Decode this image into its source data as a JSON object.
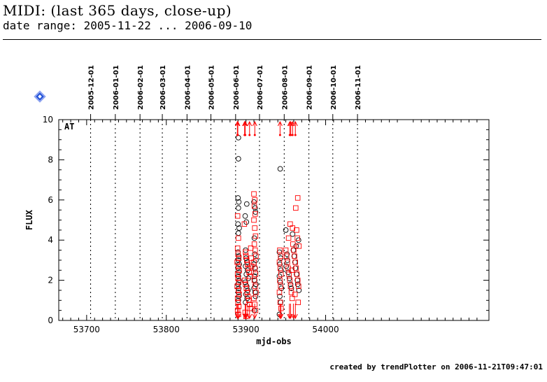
{
  "header": {
    "title": "MIDI: (last 365 days, close-up)",
    "subtitle": "date range: 2005-11-22 ... 2006-09-10"
  },
  "footer": {
    "text": "created by trendPlotter on 2006-11-21T09:47:01"
  },
  "nav": {
    "icon": "diamond-nav-icon",
    "color": "#1f4fd6"
  },
  "chart_data": {
    "type": "scatter",
    "panel_label": "AT",
    "xlabel": "mjd-obs",
    "ylabel": "FLUX",
    "xlim": [
      53665,
      54205
    ],
    "ylim": [
      0,
      10
    ],
    "x_ticks": [
      53700,
      53800,
      53900,
      54000
    ],
    "y_ticks": [
      0,
      2,
      4,
      6,
      8,
      10
    ],
    "date_markers": [
      {
        "mjd": 53705,
        "label": "2005-12-01"
      },
      {
        "mjd": 53736,
        "label": "2006-01-01"
      },
      {
        "mjd": 53767,
        "label": "2006-02-01"
      },
      {
        "mjd": 53795,
        "label": "2006-03-01"
      },
      {
        "mjd": 53826,
        "label": "2006-04-01"
      },
      {
        "mjd": 53856,
        "label": "2006-05-01"
      },
      {
        "mjd": 53887,
        "label": "2006-06-01"
      },
      {
        "mjd": 53917,
        "label": "2006-07-01"
      },
      {
        "mjd": 53948,
        "label": "2006-08-01"
      },
      {
        "mjd": 53979,
        "label": "2006-09-01"
      },
      {
        "mjd": 54009,
        "label": "2006-10-01"
      },
      {
        "mjd": 54040,
        "label": "2006-11-01"
      }
    ],
    "colors": {
      "series_black": "#000000",
      "series_red": "#ff0000"
    },
    "series": [
      {
        "marker": "circle",
        "color": "#000000",
        "points": [
          [
            53890.5,
            9.1
          ],
          [
            53890.5,
            8.05
          ],
          [
            53890.0,
            6.1
          ],
          [
            53891.0,
            5.9
          ],
          [
            53890.5,
            5.6
          ],
          [
            53890.0,
            4.8
          ],
          [
            53891.5,
            4.6
          ],
          [
            53890.5,
            4.35
          ],
          [
            53890.0,
            3.4
          ],
          [
            53891.0,
            3.2
          ],
          [
            53890.5,
            3.0
          ],
          [
            53891.5,
            2.8
          ],
          [
            53890.0,
            2.6
          ],
          [
            53891.0,
            2.4
          ],
          [
            53890.5,
            2.2
          ],
          [
            53891.5,
            2.0
          ],
          [
            53890.0,
            1.8
          ],
          [
            53891.0,
            1.6
          ],
          [
            53890.5,
            1.4
          ],
          [
            53891.0,
            1.2
          ],
          [
            53890.5,
            1.0
          ],
          [
            53901.0,
            5.8
          ],
          [
            53899.0,
            5.2
          ],
          [
            53900.5,
            4.9
          ],
          [
            53899.5,
            3.5
          ],
          [
            53900.0,
            3.1
          ],
          [
            53901.5,
            2.9
          ],
          [
            53899.5,
            2.7
          ],
          [
            53902.0,
            2.5
          ],
          [
            53900.5,
            2.3
          ],
          [
            53903.0,
            2.1
          ],
          [
            53899.0,
            1.9
          ],
          [
            53901.0,
            1.7
          ],
          [
            53902.5,
            1.5
          ],
          [
            53900.0,
            1.3
          ],
          [
            53901.5,
            1.1
          ],
          [
            53899.5,
            0.9
          ],
          [
            53910.0,
            5.9
          ],
          [
            53911.5,
            5.6
          ],
          [
            53912.0,
            5.4
          ],
          [
            53910.5,
            4.1
          ],
          [
            53911.0,
            3.3
          ],
          [
            53912.5,
            3.0
          ],
          [
            53910.0,
            2.8
          ],
          [
            53911.5,
            2.6
          ],
          [
            53912.0,
            2.4
          ],
          [
            53910.5,
            2.2
          ],
          [
            53911.0,
            2.0
          ],
          [
            53912.5,
            1.8
          ],
          [
            53910.0,
            1.6
          ],
          [
            53911.5,
            1.4
          ],
          [
            53912.0,
            1.2
          ],
          [
            53910.5,
            0.5
          ],
          [
            53943.0,
            7.55
          ],
          [
            53942.0,
            3.4
          ],
          [
            53943.5,
            3.1
          ],
          [
            53942.5,
            2.8
          ],
          [
            53944.0,
            2.5
          ],
          [
            53942.0,
            2.2
          ],
          [
            53943.0,
            1.9
          ],
          [
            53944.5,
            1.6
          ],
          [
            53942.5,
            1.2
          ],
          [
            53943.5,
            0.9
          ],
          [
            53942.0,
            0.3
          ],
          [
            53950.0,
            4.5
          ],
          [
            53951.5,
            3.3
          ],
          [
            53952.0,
            3.0
          ],
          [
            53950.5,
            2.7
          ],
          [
            53953.0,
            2.4
          ],
          [
            53954.5,
            2.1
          ],
          [
            53956.0,
            1.8
          ],
          [
            53957.0,
            1.6
          ],
          [
            53958.5,
            4.3
          ],
          [
            53959.5,
            3.5
          ],
          [
            53960.5,
            3.2
          ],
          [
            53961.5,
            2.9
          ],
          [
            53962.0,
            2.6
          ],
          [
            53963.5,
            2.3
          ],
          [
            53964.5,
            2.0
          ],
          [
            53965.0,
            1.8
          ],
          [
            53966.5,
            1.5
          ],
          [
            53966.0,
            4.0
          ],
          [
            53963.0,
            3.7
          ]
        ]
      },
      {
        "marker": "square",
        "color": "#ff0000",
        "points": [
          [
            53889.5,
            5.2
          ],
          [
            53890.5,
            4.1
          ],
          [
            53889.5,
            3.6
          ],
          [
            53890.0,
            3.3
          ],
          [
            53891.0,
            3.1
          ],
          [
            53889.0,
            2.9
          ],
          [
            53890.5,
            2.7
          ],
          [
            53891.5,
            2.5
          ],
          [
            53889.5,
            2.3
          ],
          [
            53890.0,
            2.1
          ],
          [
            53891.0,
            1.9
          ],
          [
            53889.0,
            1.7
          ],
          [
            53890.5,
            1.5
          ],
          [
            53891.5,
            1.3
          ],
          [
            53889.5,
            1.1
          ],
          [
            53890.0,
            0.9
          ],
          [
            53891.0,
            0.7
          ],
          [
            53889.5,
            0.5
          ],
          [
            53890.5,
            0.3
          ],
          [
            53898.0,
            4.8
          ],
          [
            53899.5,
            3.4
          ],
          [
            53900.0,
            3.2
          ],
          [
            53901.0,
            3.0
          ],
          [
            53902.0,
            2.8
          ],
          [
            53903.0,
            2.6
          ],
          [
            53904.0,
            2.4
          ],
          [
            53905.0,
            2.2
          ],
          [
            53898.5,
            2.0
          ],
          [
            53899.5,
            1.8
          ],
          [
            53900.5,
            1.6
          ],
          [
            53901.5,
            1.4
          ],
          [
            53902.5,
            1.2
          ],
          [
            53903.5,
            1.0
          ],
          [
            53904.5,
            0.8
          ],
          [
            53905.5,
            0.6
          ],
          [
            53899.0,
            0.4
          ],
          [
            53900.0,
            0.2
          ],
          [
            53906.0,
            3.6
          ],
          [
            53906.5,
            3.1
          ],
          [
            53907.0,
            2.7
          ],
          [
            53910.0,
            6.3
          ],
          [
            53911.0,
            6.0
          ],
          [
            53910.5,
            5.7
          ],
          [
            53911.5,
            5.3
          ],
          [
            53910.0,
            5.0
          ],
          [
            53911.0,
            4.6
          ],
          [
            53912.0,
            4.2
          ],
          [
            53910.5,
            3.8
          ],
          [
            53911.5,
            3.5
          ],
          [
            53912.5,
            3.2
          ],
          [
            53910.0,
            2.9
          ],
          [
            53911.0,
            2.6
          ],
          [
            53912.0,
            2.3
          ],
          [
            53910.5,
            2.0
          ],
          [
            53911.5,
            1.7
          ],
          [
            53912.5,
            1.4
          ],
          [
            53910.0,
            1.1
          ],
          [
            53911.0,
            0.8
          ],
          [
            53912.0,
            0.5
          ],
          [
            53942.5,
            3.5
          ],
          [
            53943.5,
            3.2
          ],
          [
            53942.0,
            2.9
          ],
          [
            53943.0,
            2.6
          ],
          [
            53944.0,
            2.3
          ],
          [
            53942.5,
            2.0
          ],
          [
            53943.5,
            1.7
          ],
          [
            53942.0,
            1.4
          ],
          [
            53943.0,
            0.9
          ],
          [
            53944.0,
            0.6
          ],
          [
            53950.0,
            3.5
          ],
          [
            53951.0,
            3.2
          ],
          [
            53952.0,
            2.9
          ],
          [
            53953.0,
            2.6
          ],
          [
            53954.0,
            2.3
          ],
          [
            53955.0,
            2.0
          ],
          [
            53956.0,
            1.7
          ],
          [
            53957.0,
            1.4
          ],
          [
            53958.0,
            1.1
          ],
          [
            53959.0,
            3.8
          ],
          [
            53960.0,
            3.5
          ],
          [
            53961.0,
            3.2
          ],
          [
            53962.0,
            2.9
          ],
          [
            53963.0,
            2.6
          ],
          [
            53964.0,
            2.3
          ],
          [
            53965.0,
            2.0
          ],
          [
            53966.0,
            1.7
          ],
          [
            53962.5,
            5.6
          ],
          [
            53965.0,
            6.1
          ],
          [
            53963.5,
            4.5
          ],
          [
            53964.5,
            4.1
          ],
          [
            53966.5,
            3.7
          ],
          [
            53958.5,
            4.6
          ],
          [
            53955.5,
            4.8
          ],
          [
            53953.5,
            4.1
          ],
          [
            53957.5,
            2.5
          ],
          [
            53961.5,
            1.3
          ],
          [
            53965.5,
            0.9
          ]
        ]
      }
    ],
    "upper_limits": [
      {
        "x": 53889.2,
        "color": "#ff0000"
      },
      {
        "x": 53889.8,
        "color": "#ff0000"
      },
      {
        "x": 53898.3,
        "color": "#ff0000"
      },
      {
        "x": 53899.1,
        "color": "#ff0000"
      },
      {
        "x": 53904.5,
        "color": "#ff0000"
      },
      {
        "x": 53911.1,
        "color": "#ff0000"
      },
      {
        "x": 53942.8,
        "color": "#ff0000"
      },
      {
        "x": 53955.0,
        "color": "#ff0000"
      },
      {
        "x": 53956.2,
        "color": "#ff0000"
      },
      {
        "x": 53958.5,
        "color": "#ff0000"
      },
      {
        "x": 53962.0,
        "color": "#ff0000"
      }
    ],
    "lower_limits": [
      {
        "x": 53889.2,
        "color": "#ff0000"
      },
      {
        "x": 53890.5,
        "color": "#ff0000"
      },
      {
        "x": 53899.0,
        "color": "#ff0000"
      },
      {
        "x": 53900.1,
        "color": "#ff0000"
      },
      {
        "x": 53904.5,
        "color": "#ff0000"
      },
      {
        "x": 53911.0,
        "color": "#ff0000"
      },
      {
        "x": 53942.8,
        "color": "#ff0000"
      },
      {
        "x": 53944.0,
        "color": "#ff0000"
      },
      {
        "x": 53954.5,
        "color": "#ff0000"
      },
      {
        "x": 53956.0,
        "color": "#ff0000"
      },
      {
        "x": 53959.5,
        "color": "#ff0000"
      },
      {
        "x": 53962.0,
        "color": "#ff0000"
      }
    ]
  }
}
